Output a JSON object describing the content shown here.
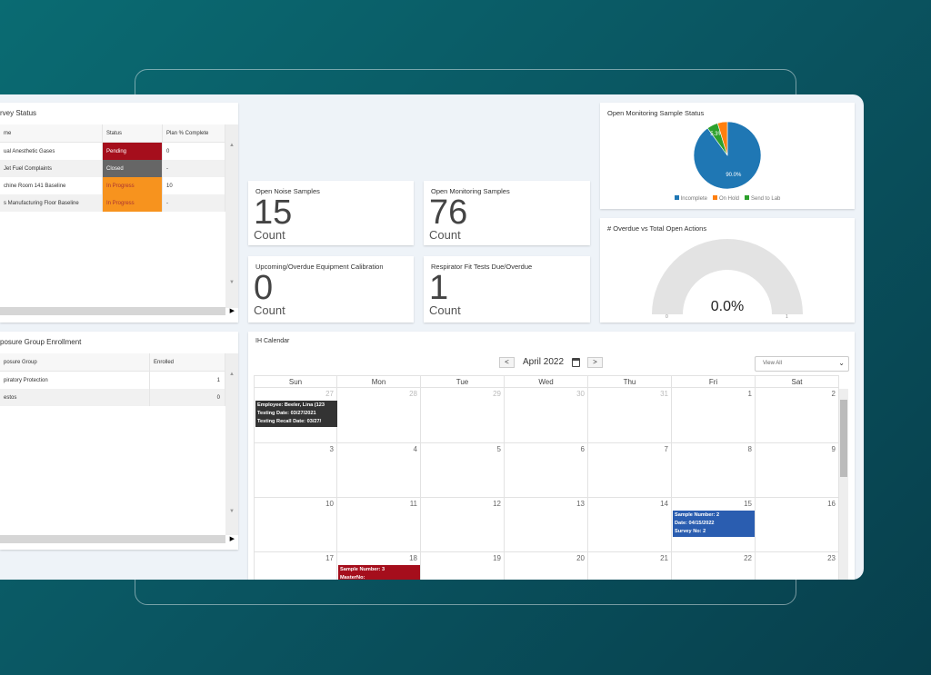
{
  "survey": {
    "title": "rvey Status",
    "columns": [
      "me",
      "Status",
      "Plan % Complete"
    ],
    "rows": [
      {
        "name": "ual Anesthetic Gases",
        "status": "Pending",
        "plan": "0"
      },
      {
        "name": "Jet Fuel Complaints",
        "status": "Closed",
        "plan": "-"
      },
      {
        "name": "chine Room 141 Baseline",
        "status": "In Progress",
        "plan": "10"
      },
      {
        "name": "s Manufacturing Floor Baseline",
        "status": "In Progress",
        "plan": "-"
      }
    ]
  },
  "status_colors": {
    "Pending": "#a50e1c",
    "Closed": "#666666",
    "In Progress": "#f7931e"
  },
  "exposure": {
    "title": "posure Group Enrollment",
    "columns": [
      "posure Group",
      "Enrolled"
    ],
    "rows": [
      {
        "name": "piratory Protection",
        "enrolled": "1"
      },
      {
        "name": "estos",
        "enrolled": "0"
      }
    ]
  },
  "stats": [
    {
      "title": "Open Noise Samples",
      "value": "15",
      "unit": "Count"
    },
    {
      "title": "Open Monitoring Samples",
      "value": "76",
      "unit": "Count"
    },
    {
      "title": "Upcoming/Overdue Equipment Calibration",
      "value": "0",
      "unit": "Count"
    },
    {
      "title": "Respirator Fit Tests Due/Overdue",
      "value": "1",
      "unit": "Count"
    }
  ],
  "chart_data": [
    {
      "type": "pie",
      "title": "Open Monitoring Sample Status",
      "categories": [
        "Incomplete",
        "On Hold",
        "Send to Lab"
      ],
      "values": [
        90.0,
        4.7,
        5.3
      ],
      "data_labels": [
        "90.0%",
        "",
        "5.3%"
      ],
      "colors": [
        "#1f77b4",
        "#ff7f0e",
        "#2ca02c"
      ],
      "legend": "bottom"
    },
    {
      "type": "gauge",
      "title": "# Overdue vs Total Open Actions",
      "value": 0.0,
      "label": "0.0%",
      "min": "0",
      "max": "1"
    }
  ],
  "calendar": {
    "title": "IH Calendar",
    "month": "April 2022",
    "prev": "<",
    "next": ">",
    "filter": "View All",
    "days": [
      "Sun",
      "Mon",
      "Tue",
      "Wed",
      "Thu",
      "Fri",
      "Sat"
    ],
    "dates": [
      "27",
      "28",
      "29",
      "30",
      "31",
      "1",
      "2",
      "3",
      "4",
      "5",
      "6",
      "7",
      "8",
      "9",
      "10",
      "11",
      "12",
      "13",
      "14",
      "15",
      "16",
      "17",
      "18",
      "19",
      "20",
      "21",
      "22",
      "23"
    ],
    "events": [
      {
        "lines": [
          "Employee: Beeler, Lina (123",
          "Testing Date: 03/27/2021",
          "Testing Recall Date: 03/27/"
        ],
        "color": "#333333"
      },
      {
        "lines": [
          "Sample Number: 2",
          "Date: 04/15/2022",
          "Survey No: 2"
        ],
        "color": "#2a5db0"
      },
      {
        "lines": [
          "Sample Number: 3",
          "MasterNo:"
        ],
        "color": "#a50e1c"
      }
    ]
  }
}
